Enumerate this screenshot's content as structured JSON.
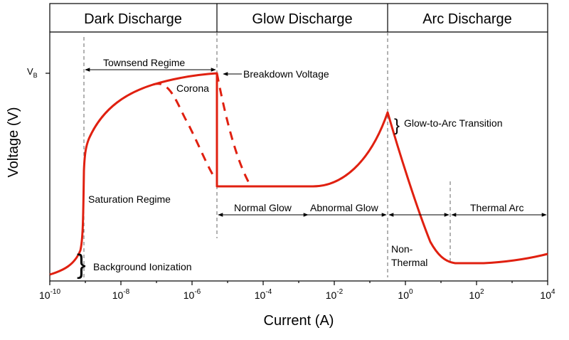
{
  "regions": [
    {
      "label": "Dark Discharge"
    },
    {
      "label": "Glow Discharge"
    },
    {
      "label": "Arc Discharge"
    }
  ],
  "axes": {
    "x_label": "Current (A)",
    "y_label": "Voltage (V)",
    "y_tick_label": "V",
    "y_tick_sub": "B",
    "x_ticks": [
      {
        "base": "10",
        "exp": "-10"
      },
      {
        "base": "10",
        "exp": "-8"
      },
      {
        "base": "10",
        "exp": "-6"
      },
      {
        "base": "10",
        "exp": "-4"
      },
      {
        "base": "10",
        "exp": "-2"
      },
      {
        "base": "10",
        "exp": "0"
      },
      {
        "base": "10",
        "exp": "2"
      },
      {
        "base": "10",
        "exp": "4"
      }
    ]
  },
  "annotations": {
    "townsend": "Townsend Regime",
    "breakdown": "Breakdown Voltage",
    "corona": "Corona",
    "glow_to_arc": "Glow-to-Arc Transition",
    "saturation": "Saturation Regime",
    "background": "Background Ionization",
    "normal_glow": "Normal Glow",
    "abnormal_glow": "Abnormal Glow",
    "thermal_arc": "Thermal Arc",
    "non_thermal_1": "Non-",
    "non_thermal_2": "Thermal"
  },
  "colors": {
    "curve": "#e02010",
    "axis": "#000000",
    "guide": "#666666"
  }
}
